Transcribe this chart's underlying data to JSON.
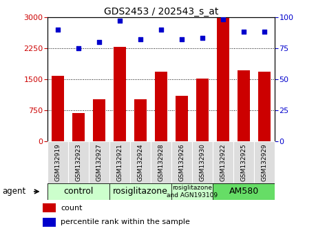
{
  "title": "GDS2453 / 202543_s_at",
  "samples": [
    "GSM132919",
    "GSM132923",
    "GSM132927",
    "GSM132921",
    "GSM132924",
    "GSM132928",
    "GSM132926",
    "GSM132930",
    "GSM132922",
    "GSM132925",
    "GSM132929"
  ],
  "counts": [
    1580,
    680,
    1020,
    2280,
    1020,
    1680,
    1100,
    1520,
    2980,
    1720,
    1680
  ],
  "percentiles": [
    90,
    75,
    80,
    97,
    82,
    90,
    82,
    83,
    98,
    88,
    88
  ],
  "ylim_left": [
    0,
    3000
  ],
  "ylim_right": [
    0,
    100
  ],
  "yticks_left": [
    0,
    750,
    1500,
    2250,
    3000
  ],
  "yticks_right": [
    0,
    25,
    50,
    75,
    100
  ],
  "bar_color": "#cc0000",
  "dot_color": "#0000cc",
  "groups": [
    {
      "label": "control",
      "start": 0,
      "end": 3,
      "color": "#ccffcc"
    },
    {
      "label": "rosiglitazone",
      "start": 3,
      "end": 6,
      "color": "#ccffcc"
    },
    {
      "label": "rosiglitazone\nand AGN193109",
      "start": 6,
      "end": 8,
      "color": "#ccffcc"
    },
    {
      "label": "AM580",
      "start": 8,
      "end": 11,
      "color": "#66dd66"
    }
  ],
  "legend_bar_label": "count",
  "legend_dot_label": "percentile rank within the sample",
  "agent_label": "agent",
  "tick_label_color_left": "#cc0000",
  "tick_label_color_right": "#0000cc",
  "xtick_bg_color": "#cccccc",
  "group_border_color": "#000000"
}
